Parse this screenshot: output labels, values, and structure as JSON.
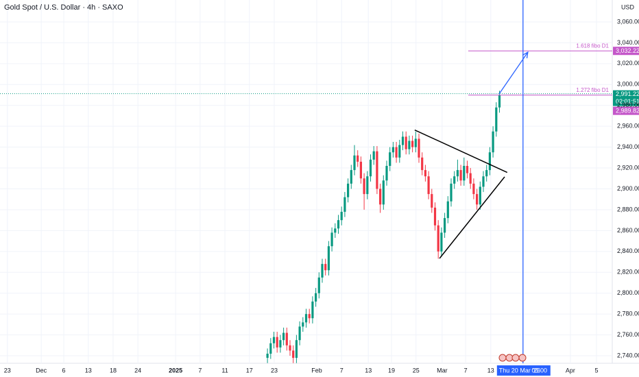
{
  "chart_data": {
    "type": "candlestick",
    "title": "Gold Spot / U.S. Dollar · 4h · SAXO",
    "currency": "USD",
    "xlim": [
      0,
      190
    ],
    "ylim": [
      2732.8,
      3081
    ],
    "grid": true,
    "up_color": "#089981",
    "down_color": "#f23645",
    "xticks": [
      {
        "value": 2.3,
        "label": "23"
      },
      {
        "value": 12.8,
        "label": "Dec"
      },
      {
        "value": 19.8,
        "label": "6"
      },
      {
        "value": 27.4,
        "label": "13"
      },
      {
        "value": 35.1,
        "label": "18"
      },
      {
        "value": 42.8,
        "label": "24"
      },
      {
        "value": 54.5,
        "label": "2025"
      },
      {
        "value": 62.1,
        "label": "7"
      },
      {
        "value": 69.8,
        "label": "11"
      },
      {
        "value": 77.4,
        "label": "17"
      },
      {
        "value": 85.1,
        "label": "23"
      },
      {
        "value": 98.3,
        "label": "Feb"
      },
      {
        "value": 106,
        "label": "7"
      },
      {
        "value": 114.3,
        "label": "13"
      },
      {
        "value": 121.5,
        "label": "19"
      },
      {
        "value": 129.1,
        "label": "25"
      },
      {
        "value": 137.2,
        "label": "Mar"
      },
      {
        "value": 144.5,
        "label": "7"
      },
      {
        "value": 152.3,
        "label": "13"
      },
      {
        "value": 177,
        "label": "Apr"
      },
      {
        "value": 185.1,
        "label": "5"
      }
    ],
    "yticks": [
      {
        "value": 2740,
        "label": "2,740.00"
      },
      {
        "value": 2760,
        "label": "2,760.00"
      },
      {
        "value": 2780,
        "label": "2,780.00"
      },
      {
        "value": 2800,
        "label": "2,800.00"
      },
      {
        "value": 2820,
        "label": "2,820.00"
      },
      {
        "value": 2840,
        "label": "2,840.00"
      },
      {
        "value": 2860,
        "label": "2,860.00"
      },
      {
        "value": 2880,
        "label": "2,880.00"
      },
      {
        "value": 2900,
        "label": "2,900.00"
      },
      {
        "value": 2920,
        "label": "2,920.00"
      },
      {
        "value": 2940,
        "label": "2,940.00"
      },
      {
        "value": 2960,
        "label": "2,960.00"
      },
      {
        "value": 2980,
        "label": "2,980.00"
      },
      {
        "value": 3000,
        "label": "3,000.00"
      },
      {
        "value": 3020,
        "label": "3,020.00"
      },
      {
        "value": 3040,
        "label": "3,040.00"
      },
      {
        "value": 3060,
        "label": "3,060.00"
      }
    ],
    "x": [
      83,
      84,
      85,
      86,
      87,
      88,
      89,
      90,
      91,
      92,
      93,
      94,
      95,
      96,
      97,
      98,
      99,
      100,
      101,
      102,
      103,
      104,
      105,
      106,
      107,
      108,
      109,
      110,
      111,
      112,
      113,
      114,
      115,
      116,
      117,
      118,
      119,
      120,
      121,
      122,
      123,
      124,
      125,
      126,
      127,
      128,
      129,
      130,
      131,
      132,
      133,
      134,
      135,
      136,
      137,
      138,
      139,
      140,
      141,
      142,
      143,
      144,
      145,
      146,
      147,
      148,
      149,
      150,
      151,
      152,
      153,
      154,
      155
    ],
    "open": [
      2738,
      2742,
      2752,
      2758,
      2748,
      2755,
      2762,
      2750,
      2745,
      2738,
      2755,
      2768,
      2772,
      2780,
      2776,
      2792,
      2800,
      2815,
      2828,
      2822,
      2845,
      2858,
      2862,
      2870,
      2878,
      2892,
      2905,
      2918,
      2932,
      2926,
      2910,
      2895,
      2912,
      2928,
      2936,
      2900,
      2885,
      2908,
      2922,
      2935,
      2940,
      2930,
      2942,
      2950,
      2938,
      2946,
      2940,
      2948,
      2930,
      2918,
      2912,
      2895,
      2882,
      2865,
      2840,
      2858,
      2872,
      2888,
      2905,
      2912,
      2918,
      2908,
      2922,
      2915,
      2905,
      2895,
      2885,
      2902,
      2912,
      2918,
      2935,
      2955,
      2978
    ],
    "high": [
      2747,
      2757,
      2763,
      2763,
      2760,
      2767,
      2767,
      2755,
      2750,
      2760,
      2773,
      2777,
      2785,
      2785,
      2797,
      2805,
      2820,
      2833,
      2833,
      2850,
      2863,
      2867,
      2875,
      2883,
      2897,
      2910,
      2923,
      2942,
      2937,
      2931,
      2915,
      2917,
      2933,
      2941,
      2941,
      2905,
      2913,
      2927,
      2940,
      2945,
      2945,
      2947,
      2955,
      2955,
      2951,
      2951,
      2955,
      2953,
      2935,
      2923,
      2917,
      2900,
      2887,
      2870,
      2863,
      2877,
      2893,
      2910,
      2917,
      2928,
      2923,
      2930,
      2927,
      2920,
      2910,
      2900,
      2907,
      2917,
      2923,
      2940,
      2960,
      2983,
      2994
    ],
    "low": [
      2733,
      2737,
      2747,
      2743,
      2743,
      2750,
      2745,
      2740,
      2733,
      2733,
      2750,
      2763,
      2767,
      2771,
      2771,
      2787,
      2795,
      2810,
      2817,
      2817,
      2840,
      2853,
      2857,
      2865,
      2873,
      2887,
      2900,
      2913,
      2921,
      2905,
      2880,
      2890,
      2907,
      2923,
      2895,
      2877,
      2880,
      2903,
      2917,
      2930,
      2925,
      2925,
      2937,
      2933,
      2933,
      2935,
      2935,
      2925,
      2913,
      2907,
      2890,
      2877,
      2860,
      2833,
      2835,
      2853,
      2867,
      2883,
      2900,
      2907,
      2903,
      2903,
      2910,
      2900,
      2890,
      2880,
      2880,
      2897,
      2907,
      2913,
      2930,
      2950,
      2973
    ],
    "close": [
      2742,
      2752,
      2758,
      2748,
      2755,
      2762,
      2750,
      2745,
      2738,
      2755,
      2768,
      2772,
      2780,
      2776,
      2792,
      2800,
      2815,
      2828,
      2822,
      2845,
      2858,
      2862,
      2870,
      2878,
      2892,
      2905,
      2918,
      2932,
      2926,
      2910,
      2895,
      2912,
      2928,
      2936,
      2900,
      2885,
      2908,
      2922,
      2935,
      2940,
      2930,
      2942,
      2950,
      2938,
      2946,
      2940,
      2948,
      2930,
      2918,
      2912,
      2895,
      2882,
      2865,
      2840,
      2858,
      2872,
      2888,
      2905,
      2912,
      2918,
      2908,
      2922,
      2915,
      2905,
      2895,
      2885,
      2902,
      2912,
      2918,
      2935,
      2955,
      2978,
      2990
    ],
    "current_price": {
      "value": 2991.22,
      "label": "2,991.22",
      "countdown": "02:01:51",
      "color": "#089981"
    },
    "fibo_levels": [
      {
        "name": "1.618 fibo D1",
        "value": 3032.22,
        "label": "3,032.22",
        "x_start": 145.3,
        "color": "#c457c9"
      },
      {
        "name": "1.272 fibo D1",
        "value": 2989.82,
        "label": "2,989.82",
        "x_start": 145.3,
        "color": "#c457c9"
      }
    ],
    "trend_lines": [
      {
        "x": [
          128.7,
          157.4
        ],
        "y": [
          2956.4,
          2915.7
        ],
        "color": "#000000"
      },
      {
        "x": [
          136.4,
          156.6
        ],
        "y": [
          2833.3,
          2911.5
        ],
        "color": "#000000"
      }
    ],
    "arrow": {
      "x": [
        154.9,
        163.8
      ],
      "y": [
        2991,
        3031
      ],
      "color": "#2962ff"
    },
    "crosshair": {
      "x": 162.3,
      "label": "Thu 20 Mar '25",
      "time": "05:00",
      "color": "#2962ff"
    }
  }
}
